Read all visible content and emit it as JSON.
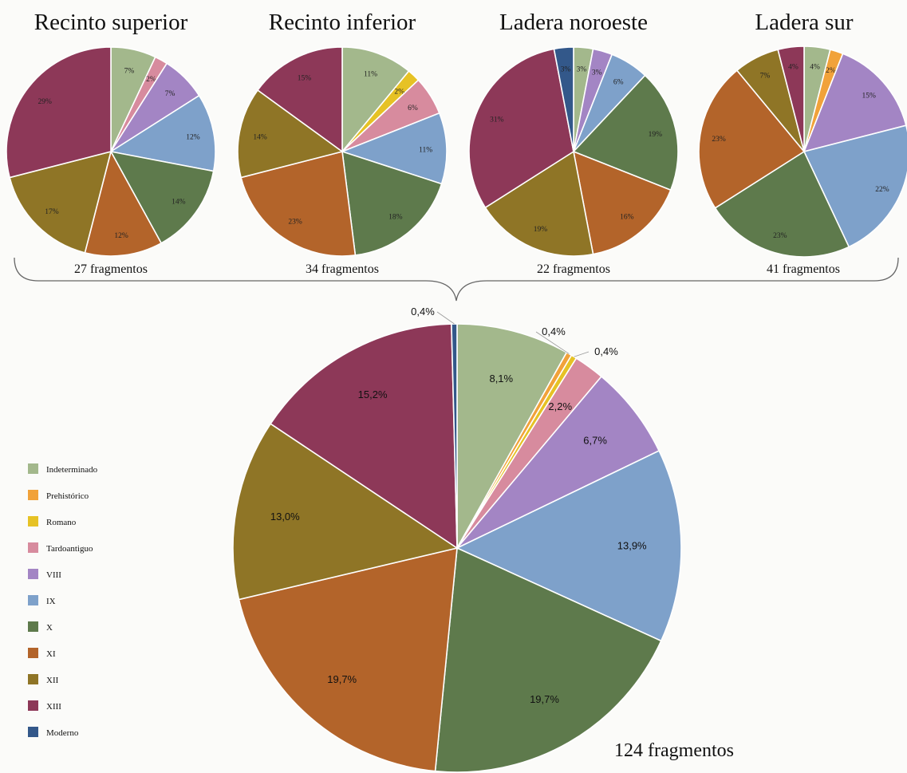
{
  "colors": {
    "Indeterminado": "#a3b88c",
    "Prehistórico": "#f1a23a",
    "Romano": "#e6c225",
    "Tardoantiguo": "#d78b9e",
    "VIII": "#a385c4",
    "IX": "#7ea1ca",
    "X": "#5e7a4c",
    "XI": "#b3642a",
    "XII": "#8f7526",
    "XIII": "#8d3858",
    "Moderno": "#33588a"
  },
  "legend": [
    "Indeterminado",
    "Prehistórico",
    "Romano",
    "Tardoantiguo",
    "VIII",
    "IX",
    "X",
    "XI",
    "XII",
    "XIII",
    "Moderno"
  ],
  "chart_data": [
    {
      "type": "pie",
      "title": "Recinto superior",
      "caption": "27 fragmentos",
      "slices": [
        {
          "category": "Indeterminado",
          "value": 7,
          "label": "7%"
        },
        {
          "category": "Tardoantiguo",
          "value": 2,
          "label": "2%"
        },
        {
          "category": "VIII",
          "value": 7,
          "label": "7%"
        },
        {
          "category": "IX",
          "value": 12,
          "label": "12%"
        },
        {
          "category": "X",
          "value": 14,
          "label": "14%"
        },
        {
          "category": "XI",
          "value": 12,
          "label": "12%"
        },
        {
          "category": "XII",
          "value": 17,
          "label": "17%"
        },
        {
          "category": "XIII",
          "value": 29,
          "label": "29%"
        }
      ]
    },
    {
      "type": "pie",
      "title": "Recinto inferior",
      "caption": "34 fragmentos",
      "slices": [
        {
          "category": "Indeterminado",
          "value": 11,
          "label": "11%"
        },
        {
          "category": "Romano",
          "value": 2,
          "label": "2%"
        },
        {
          "category": "Tardoantiguo",
          "value": 6,
          "label": "6%"
        },
        {
          "category": "IX",
          "value": 11,
          "label": "11%"
        },
        {
          "category": "X",
          "value": 18,
          "label": "18%"
        },
        {
          "category": "XI",
          "value": 23,
          "label": "23%"
        },
        {
          "category": "XII",
          "value": 14,
          "label": "14%"
        },
        {
          "category": "XIII",
          "value": 15,
          "label": "15%"
        }
      ]
    },
    {
      "type": "pie",
      "title": "Ladera noroeste",
      "caption": "22 fragmentos",
      "slices": [
        {
          "category": "Indeterminado",
          "value": 3,
          "label": "3%"
        },
        {
          "category": "VIII",
          "value": 3,
          "label": "3%"
        },
        {
          "category": "IX",
          "value": 6,
          "label": "6%"
        },
        {
          "category": "X",
          "value": 19,
          "label": "19%"
        },
        {
          "category": "XI",
          "value": 16,
          "label": "16%"
        },
        {
          "category": "XII",
          "value": 19,
          "label": "19%"
        },
        {
          "category": "XIII",
          "value": 31,
          "label": "31%"
        },
        {
          "category": "Moderno",
          "value": 3,
          "label": "3%"
        }
      ]
    },
    {
      "type": "pie",
      "title": "Ladera sur",
      "caption": "41 fragmentos",
      "slices": [
        {
          "category": "Indeterminado",
          "value": 4,
          "label": "4%"
        },
        {
          "category": "Prehistórico",
          "value": 2,
          "label": "2%"
        },
        {
          "category": "VIII",
          "value": 15,
          "label": "15%"
        },
        {
          "category": "IX",
          "value": 22,
          "label": "22%"
        },
        {
          "category": "X",
          "value": 23,
          "label": "23%"
        },
        {
          "category": "XI",
          "value": 23,
          "label": "23%"
        },
        {
          "category": "XII",
          "value": 7,
          "label": "7%"
        },
        {
          "category": "XIII",
          "value": 4,
          "label": "4%"
        }
      ]
    },
    {
      "type": "pie",
      "title": "",
      "caption": "124 fragmentos",
      "slices": [
        {
          "category": "Indeterminado",
          "value": 8.1,
          "label": "8,1%"
        },
        {
          "category": "Prehistórico",
          "value": 0.4,
          "label": "0,4%"
        },
        {
          "category": "Romano",
          "value": 0.4,
          "label": "0,4%"
        },
        {
          "category": "Tardoantiguo",
          "value": 2.2,
          "label": "2,2%"
        },
        {
          "category": "VIII",
          "value": 6.7,
          "label": "6,7%"
        },
        {
          "category": "IX",
          "value": 13.9,
          "label": "13,9%"
        },
        {
          "category": "X",
          "value": 19.7,
          "label": "19,7%"
        },
        {
          "category": "XI",
          "value": 19.7,
          "label": "19,7%"
        },
        {
          "category": "XII",
          "value": 13.0,
          "label": "13,0%"
        },
        {
          "category": "XIII",
          "value": 15.2,
          "label": "15,2%"
        },
        {
          "category": "Moderno",
          "value": 0.4,
          "label": "0,4%"
        }
      ]
    }
  ]
}
